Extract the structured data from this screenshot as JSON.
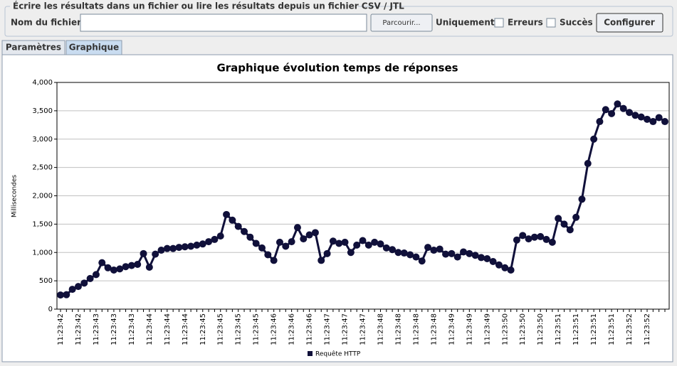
{
  "panel": {
    "title": "Écrire les résultats dans un fichier ou lire les résultats depuis un fichier CSV / JTL",
    "file_label": "Nom du fichier :",
    "browse_button": "Parcourir...",
    "only_label": "Uniquement :",
    "errors_checkbox": "Erreurs",
    "success_checkbox": "Succès",
    "configure_button": "Configurer"
  },
  "tabs": [
    "Paramètres",
    "Graphique"
  ],
  "chart_data": {
    "type": "line",
    "title": "Graphique évolution temps de réponses",
    "y_label": "Millisecondes",
    "categories": [
      "11:23:42",
      null,
      null,
      "11:23:42",
      null,
      null,
      "11:23:43",
      null,
      null,
      "11:23:43",
      null,
      null,
      "11:23:43",
      null,
      null,
      "11:23:44",
      null,
      null,
      "11:23:44",
      null,
      null,
      "11:23:44",
      null,
      null,
      "11:23:45",
      null,
      null,
      "11:23:45",
      null,
      null,
      "11:23:45",
      null,
      null,
      "11:23:45",
      null,
      null,
      "11:23:46",
      null,
      null,
      "11:23:46",
      null,
      null,
      "11:23:46",
      null,
      null,
      "11:23:47",
      null,
      null,
      "11:23:47",
      null,
      null,
      "11:23:47",
      null,
      null,
      "11:23:48",
      null,
      null,
      "11:23:48",
      null,
      null,
      "11:23:48",
      null,
      null,
      "11:23:48",
      null,
      null,
      "11:23:49",
      null,
      null,
      "11:23:49",
      null,
      null,
      "11:23:49",
      null,
      null,
      "11:23:50",
      null,
      null,
      "11:23:50",
      null,
      null,
      "11:23:50",
      null,
      null,
      "11:23:51",
      null,
      null,
      "11:23:51",
      null,
      null,
      "11:23:51",
      null,
      null,
      "11:23:51",
      null,
      null,
      "11:23:52",
      null,
      null,
      "11:23:52",
      null,
      null,
      null
    ],
    "series": [
      {
        "name": "Requête HTTP",
        "color": "#10103a",
        "values": [
          250,
          255,
          350,
          400,
          460,
          540,
          610,
          820,
          730,
          690,
          710,
          750,
          770,
          790,
          980,
          740,
          970,
          1040,
          1070,
          1070,
          1090,
          1100,
          1110,
          1130,
          1150,
          1190,
          1230,
          1290,
          1670,
          1570,
          1460,
          1370,
          1270,
          1160,
          1080,
          960,
          860,
          1180,
          1110,
          1190,
          1440,
          1240,
          1310,
          1350,
          860,
          980,
          1200,
          1160,
          1180,
          1000,
          1130,
          1210,
          1130,
          1180,
          1150,
          1080,
          1050,
          1000,
          990,
          960,
          920,
          850,
          1090,
          1040,
          1060,
          970,
          980,
          920,
          1010,
          980,
          950,
          910,
          890,
          840,
          780,
          730,
          690,
          1220,
          1300,
          1240,
          1270,
          1280,
          1230,
          1180,
          1600,
          1500,
          1400,
          1620,
          1940,
          2570,
          3000,
          3310,
          3520,
          3450,
          3620,
          3540,
          3470,
          3420,
          3390,
          3350,
          3310,
          3380,
          3310
        ]
      }
    ],
    "ylim": [
      0,
      4000
    ],
    "yticks": [
      0,
      500,
      {
        "value": 1000,
        "label": "1,000"
      },
      {
        "value": 1500,
        "label": "1,500"
      },
      {
        "value": 2000,
        "label": "2,000"
      },
      {
        "value": 2500,
        "label": "2,500"
      },
      {
        "value": 3000,
        "label": "3,000"
      },
      {
        "value": 3500,
        "label": "3,500"
      },
      {
        "value": 4000,
        "label": "4,000"
      }
    ],
    "grid": true
  }
}
